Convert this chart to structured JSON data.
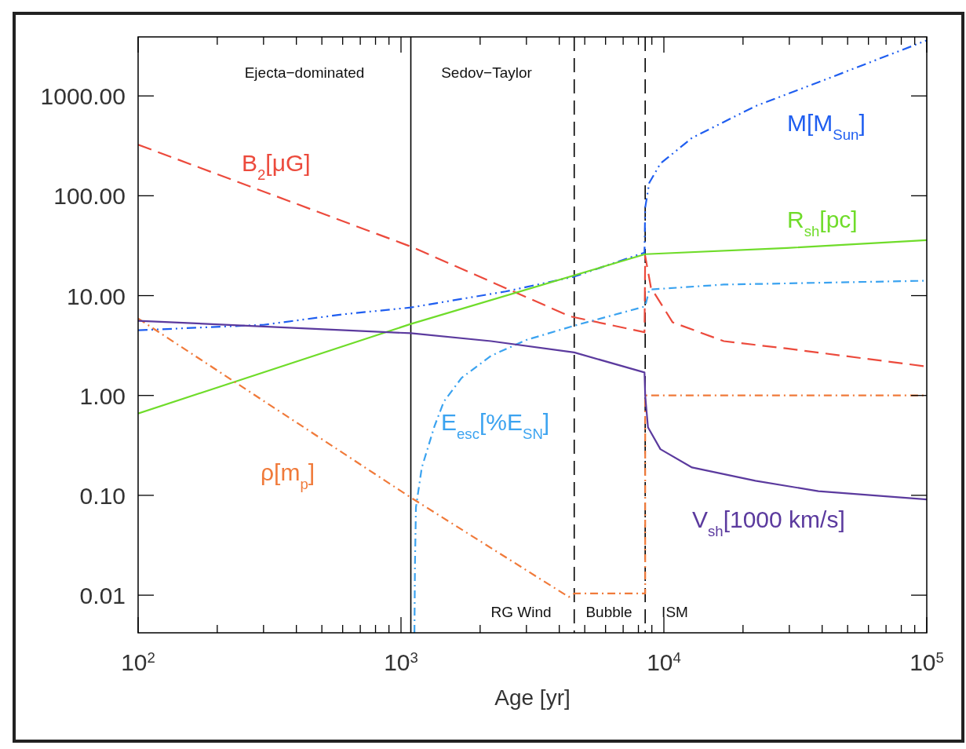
{
  "chart_data": {
    "type": "line",
    "xlabel": "Age [yr]",
    "log": "xy",
    "grid": false,
    "marker": "none",
    "xlim": [
      100,
      100000
    ],
    "ylim": [
      0.0042,
      3900
    ],
    "xticks": [
      {
        "value": 100,
        "label": "10$^{2}$"
      },
      {
        "value": 1000,
        "label": "10$^{3}$"
      },
      {
        "value": 10000,
        "label": "10$^{4}$"
      },
      {
        "value": 100000,
        "label": "10$^{5}$"
      }
    ],
    "yticks": [
      {
        "value": 0.01,
        "label": "0.01"
      },
      {
        "value": 0.1,
        "label": "0.10"
      },
      {
        "value": 1,
        "label": "1.00"
      },
      {
        "value": 10,
        "label": "10.00"
      },
      {
        "value": 100,
        "label": "100.00"
      },
      {
        "value": 1000,
        "label": "1000.00"
      }
    ],
    "series": [
      {
        "name": "B$_{2}$[μG]",
        "color": "#ec4a3c",
        "line_style": "dashed",
        "x": [
          100,
          1090,
          4400,
          8440,
          8490,
          8930,
          10800,
          16900,
          29400,
          100000
        ],
        "values": [
          325,
          31,
          6.2,
          4.3,
          25,
          12,
          5.4,
          3.5,
          2.95,
          1.95
        ]
      },
      {
        "name": "M[M$_{Sun}$]",
        "color": "#1f5ef0",
        "line_style": "dashdotdot",
        "x": [
          100,
          300,
          600,
          1090,
          2500,
          4560,
          8440,
          8490,
          8800,
          9700,
          12800,
          22300,
          38700,
          100000
        ],
        "values": [
          4.5,
          5.1,
          6.5,
          7.6,
          11,
          15.5,
          27,
          76,
          135,
          210,
          380,
          790,
          1370,
          3600
        ]
      },
      {
        "name": "R$_{sh}$[pc]",
        "color": "#6fdc2a",
        "line_style": "solid",
        "x": [
          100,
          1090,
          8490,
          29400,
          100000
        ],
        "values": [
          0.66,
          5.2,
          26,
          30,
          36
        ]
      },
      {
        "name": "E$_{esc}$[%E$_{SN}$]",
        "color": "#3ba3f0",
        "line_style": "dashdot",
        "x": [
          1125,
          1130,
          1140,
          1200,
          1340,
          1456,
          1700,
          2200,
          3000,
          4560,
          8490,
          8800,
          16900,
          100000
        ],
        "values": [
          0.0042,
          0.02,
          0.076,
          0.19,
          0.49,
          0.87,
          1.5,
          2.5,
          3.6,
          5.0,
          7.8,
          11.5,
          12.9,
          14.1
        ]
      },
      {
        "name": "ρ[m$_{p}$]",
        "color": "#f07a3a",
        "line_style": "dashdot",
        "x": [
          100,
          1090,
          4350,
          4560,
          8490,
          8490,
          100000
        ],
        "values": [
          5.9,
          0.095,
          0.0096,
          0.0104,
          0.0104,
          1.0,
          1.0
        ]
      },
      {
        "name": "V$_{sh}$[1000 km/s]",
        "color": "#5b3a9e",
        "line_style": "solid",
        "x": [
          100,
          1090,
          2200,
          4560,
          8440,
          8490,
          8700,
          9700,
          12800,
          22300,
          38700,
          100000
        ],
        "values": [
          5.6,
          4.2,
          3.5,
          2.7,
          1.7,
          1.0,
          0.48,
          0.29,
          0.19,
          0.14,
          0.11,
          0.091
        ]
      }
    ],
    "ref_lines": [
      {
        "axis": "x",
        "value": 1090,
        "color": "#000000",
        "line_style": "solid"
      },
      {
        "axis": "x",
        "value": 4560,
        "color": "#000000",
        "line_style": "dashed"
      },
      {
        "axis": "x",
        "value": 8490,
        "color": "#000000",
        "line_style": "dashed"
      }
    ],
    "annotations": [
      "Ejecta−dominated",
      "Sedov−Taylor",
      "RG Wind",
      "Bubble",
      "ISM"
    ]
  }
}
